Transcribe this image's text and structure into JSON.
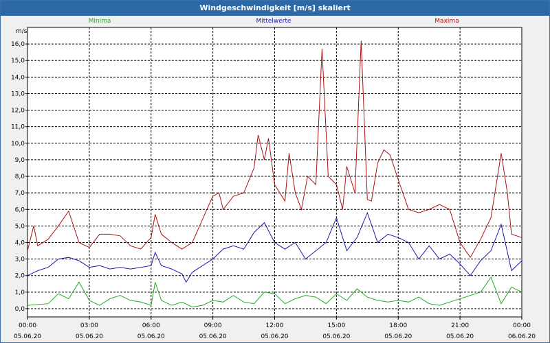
{
  "chart_data": {
    "type": "line",
    "title": "Windgeschwindigkeit [m/s] skaliert",
    "ylabel": "m/s",
    "ylim": [
      -0.5,
      17.0
    ],
    "yticks": [
      "0,0",
      "1,0",
      "2,0",
      "3,0",
      "4,0",
      "5,0",
      "6,0",
      "7,0",
      "8,0",
      "9,0",
      "10,0",
      "11,0",
      "12,0",
      "13,0",
      "14,0",
      "15,0",
      "16,0"
    ],
    "ytick_values": [
      0,
      1,
      2,
      3,
      4,
      5,
      6,
      7,
      8,
      9,
      10,
      11,
      12,
      13,
      14,
      15,
      16
    ],
    "xlim": [
      0,
      24
    ],
    "xticks": [
      {
        "time": "00:00",
        "date": "05.06.20",
        "hour": 0
      },
      {
        "time": "03:00",
        "date": "05.06.20",
        "hour": 3
      },
      {
        "time": "06:00",
        "date": "05.06.20",
        "hour": 6
      },
      {
        "time": "09:00",
        "date": "05.06.20",
        "hour": 9
      },
      {
        "time": "12:00",
        "date": "05.06.20",
        "hour": 12
      },
      {
        "time": "15:00",
        "date": "05.06.20",
        "hour": 15
      },
      {
        "time": "18:00",
        "date": "05.06.20",
        "hour": 18
      },
      {
        "time": "21:00",
        "date": "05.06.20",
        "hour": 21
      },
      {
        "time": "00:00",
        "date": "06.06.20",
        "hour": 24
      }
    ],
    "grid": true,
    "series": [
      {
        "name": "Minima",
        "color": "#22aa22",
        "x": [
          0,
          1,
          1.5,
          2,
          2.5,
          3,
          3.5,
          4,
          4.5,
          5,
          5.5,
          6,
          6.2,
          6.5,
          7,
          7.5,
          8,
          8.5,
          9,
          9.5,
          10,
          10.5,
          11,
          11.5,
          12,
          12.5,
          13,
          13.5,
          14,
          14.5,
          15,
          15.5,
          16,
          16.5,
          17,
          17.5,
          18,
          18.5,
          19,
          19.5,
          20,
          20.5,
          21,
          21.5,
          22,
          22.5,
          23,
          23.5,
          24
        ],
        "values": [
          0.2,
          0.3,
          0.9,
          0.6,
          1.6,
          0.5,
          0.2,
          0.6,
          0.8,
          0.5,
          0.4,
          0.2,
          1.6,
          0.5,
          0.2,
          0.4,
          0.1,
          0.2,
          0.5,
          0.4,
          0.8,
          0.4,
          0.3,
          1.0,
          0.9,
          0.3,
          0.6,
          0.8,
          0.7,
          0.3,
          0.9,
          0.5,
          1.2,
          0.7,
          0.5,
          0.4,
          0.5,
          0.4,
          0.7,
          0.3,
          0.2,
          0.4,
          0.6,
          0.8,
          1.0,
          1.9,
          0.3,
          1.3,
          1.0
        ]
      },
      {
        "name": "Mittelwerte",
        "color": "#1a1aaa",
        "x": [
          0,
          0.5,
          1,
          1.5,
          2,
          2.5,
          3,
          3.5,
          4,
          4.5,
          5,
          5.5,
          6,
          6.2,
          6.5,
          7,
          7.5,
          7.7,
          8,
          8.5,
          9,
          9.5,
          10,
          10.5,
          11,
          11.5,
          12,
          12.5,
          13,
          13.5,
          14,
          14.5,
          15,
          15.5,
          16,
          16.5,
          17,
          17.5,
          18,
          18.5,
          19,
          19.5,
          20,
          20.5,
          21,
          21.5,
          22,
          22.5,
          23,
          23.5,
          24
        ],
        "values": [
          2.0,
          2.3,
          2.5,
          3.0,
          3.1,
          2.9,
          2.5,
          2.6,
          2.4,
          2.5,
          2.4,
          2.5,
          2.6,
          3.4,
          2.6,
          2.4,
          2.1,
          1.6,
          2.2,
          2.6,
          3.0,
          3.6,
          3.8,
          3.6,
          4.6,
          5.2,
          4.0,
          3.6,
          4.0,
          3.0,
          3.5,
          4.0,
          5.5,
          3.5,
          4.3,
          5.8,
          4.0,
          4.5,
          4.3,
          4.0,
          3.0,
          3.8,
          3.0,
          3.3,
          2.7,
          2.0,
          2.9,
          3.5,
          5.1,
          2.3,
          2.9
        ]
      },
      {
        "name": "Maxima",
        "color": "#aa1111",
        "x": [
          0,
          0.3,
          0.5,
          1,
          1.5,
          2,
          2.5,
          3,
          3.5,
          4,
          4.5,
          5,
          5.5,
          6,
          6.2,
          6.5,
          7,
          7.5,
          8,
          8.5,
          9,
          9.3,
          9.5,
          10,
          10.5,
          11,
          11.2,
          11.5,
          11.7,
          12,
          12.5,
          12.7,
          13,
          13.3,
          13.6,
          14,
          14.3,
          14.6,
          15,
          15.3,
          15.5,
          15.9,
          16.2,
          16.5,
          16.7,
          17,
          17.3,
          17.6,
          18,
          18.5,
          19,
          19.5,
          20,
          20.5,
          21,
          21.5,
          22,
          22.5,
          23,
          23.3,
          23.5,
          24
        ],
        "values": [
          3.5,
          5.0,
          3.8,
          4.2,
          5.0,
          5.9,
          4.0,
          3.7,
          4.5,
          4.5,
          4.4,
          3.8,
          3.6,
          4.3,
          5.7,
          4.5,
          4.0,
          3.6,
          4.0,
          5.4,
          6.8,
          7.0,
          6.0,
          6.8,
          7.0,
          8.5,
          10.5,
          9.0,
          10.3,
          7.5,
          6.5,
          9.4,
          7.0,
          6.0,
          8.0,
          7.5,
          15.7,
          8.0,
          7.5,
          6.0,
          8.6,
          7.0,
          16.2,
          6.6,
          6.5,
          8.8,
          9.6,
          9.3,
          7.8,
          6.0,
          5.8,
          6.0,
          6.3,
          6.0,
          4.0,
          3.1,
          4.2,
          5.5,
          9.4,
          7.0,
          4.5,
          4.3
        ]
      }
    ]
  }
}
